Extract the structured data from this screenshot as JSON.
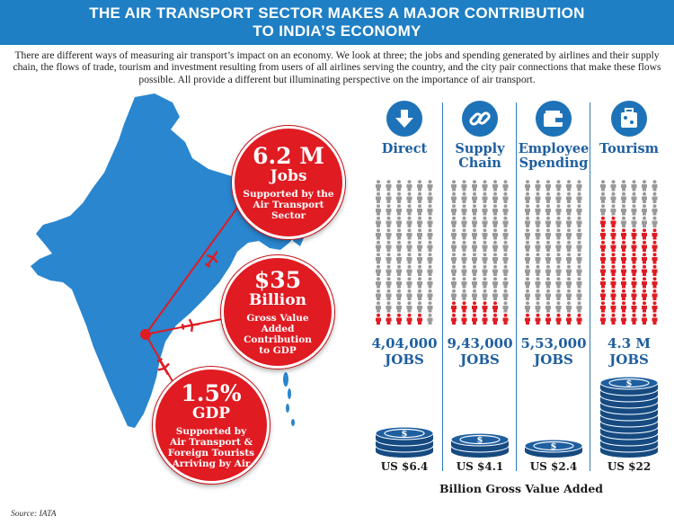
{
  "header": {
    "line1": "THE AIR TRANSPORT SECTOR MAKES A MAJOR CONTRIBUTION",
    "line2": "TO INDIA’S ECONOMY"
  },
  "intro": "There are different ways of measuring air transport’s impact on an economy. We look at three; the jobs and spending generated by airlines and their supply chain, the flows of trade, tourism and investment resulting from users of all airlines serving the country, and the city pair connections that make these flows possible. All provide a different but illuminating perspective on the importance of air transport.",
  "bubbles": {
    "jobs": {
      "big": "6.2 M",
      "mid": "Jobs",
      "small": [
        "Supported by the",
        "Air Transport",
        "Sector"
      ]
    },
    "gva": {
      "big": "$35",
      "mid": "Billion",
      "small": [
        "Gross Value",
        "Added",
        "Contribution",
        "to GDP"
      ]
    },
    "gdp": {
      "big": "1.5%",
      "mid": "GDP",
      "small": [
        "Supported by",
        "Air Transport &",
        "Foreign Tourists",
        "Arriving by Air"
      ]
    }
  },
  "colors": {
    "header_blue": "#1f7fc4",
    "map_blue": "#2a86cf",
    "bubble_red": "#e01b22",
    "person_gray": "#9a9a9a",
    "person_red": "#e01b22",
    "coin_blue": "#1e5fa0"
  },
  "columns": [
    {
      "icon": "arrow-down-icon",
      "title_lines": [
        "Direct"
      ],
      "jobs": "4,04,000",
      "jobs_label": "JOBS",
      "red_fraction": 0.065,
      "coin_count": 3,
      "gva": "US $6.4"
    },
    {
      "icon": "chain-link-icon",
      "title_lines": [
        "Supply",
        "Chain"
      ],
      "jobs": "9,43,000",
      "jobs_label": "JOBS",
      "red_fraction": 0.15,
      "coin_count": 2,
      "gva": "US $4.1"
    },
    {
      "icon": "wallet-icon",
      "title_lines": [
        "Employee",
        "Spending"
      ],
      "jobs": "5,53,000",
      "jobs_label": "JOBS",
      "red_fraction": 0.09,
      "coin_count": 1,
      "gva": "US $2.4"
    },
    {
      "icon": "suitcase-icon",
      "title_lines": [
        "Tourism"
      ],
      "jobs": "4.3 M",
      "jobs_label": "JOBS",
      "red_fraction": 0.69,
      "coin_count": 11,
      "gva": "US $22"
    }
  ],
  "gva_caption": "Billion Gross Value Added",
  "source": "Source: IATA"
}
